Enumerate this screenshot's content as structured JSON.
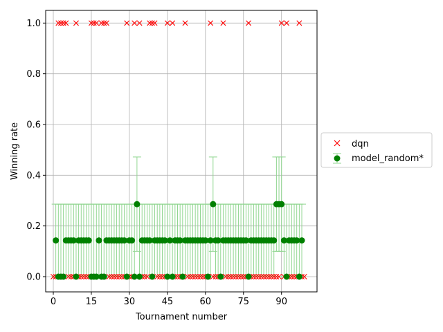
{
  "chart_data": {
    "type": "scatter",
    "title": "",
    "xlabel": "Tournament number",
    "ylabel": "Winning rate",
    "xlim": [
      -3,
      104
    ],
    "ylim": [
      -0.06,
      1.05
    ],
    "xticks": [
      0,
      15,
      30,
      45,
      60,
      75,
      90
    ],
    "yticks": [
      0.0,
      0.2,
      0.4,
      0.6,
      0.8,
      1.0
    ],
    "x_tick_labels": [
      "0",
      "15",
      "30",
      "45",
      "60",
      "75",
      "90"
    ],
    "y_tick_labels": [
      "0.0",
      "0.2",
      "0.4",
      "0.6",
      "0.8",
      "1.0"
    ],
    "grid": true,
    "legend_placement": "outside-right",
    "colors": {
      "dqn": "#ff0000",
      "model_random": "#008000",
      "errorbar": "#90d690"
    },
    "legend": [
      {
        "label": "dqn",
        "marker": "x"
      },
      {
        "label": "model_random*",
        "marker": "o-errorbar"
      }
    ],
    "series": [
      {
        "name": "dqn",
        "marker": "x",
        "x": [
          0,
          1,
          2,
          3,
          4,
          5,
          6,
          7,
          8,
          9,
          10,
          11,
          12,
          13,
          14,
          15,
          16,
          17,
          18,
          19,
          20,
          21,
          22,
          23,
          24,
          25,
          26,
          27,
          28,
          29,
          30,
          31,
          32,
          33,
          34,
          35,
          36,
          37,
          38,
          39,
          40,
          41,
          42,
          43,
          44,
          45,
          46,
          47,
          48,
          49,
          50,
          51,
          52,
          53,
          54,
          55,
          56,
          57,
          58,
          59,
          60,
          61,
          62,
          63,
          64,
          65,
          66,
          67,
          68,
          69,
          70,
          71,
          72,
          73,
          74,
          75,
          76,
          77,
          78,
          79,
          80,
          81,
          82,
          83,
          84,
          85,
          86,
          87,
          88,
          89,
          90,
          91,
          92,
          93,
          94,
          95,
          96,
          97,
          98,
          99
        ],
        "y": [
          0,
          0,
          1,
          1,
          1,
          1,
          0,
          0,
          0,
          1,
          0,
          0,
          0,
          0,
          0,
          1,
          1,
          1,
          0,
          1,
          1,
          1,
          0,
          0,
          0,
          0,
          0,
          0,
          0,
          1,
          0,
          0,
          1,
          0,
          1,
          0,
          0,
          0,
          1,
          1,
          1,
          0,
          0,
          0,
          0,
          1,
          0,
          1,
          0,
          0,
          0,
          0,
          1,
          0,
          0,
          0,
          0,
          0,
          0,
          0,
          0,
          0,
          1,
          0,
          0,
          0,
          0,
          1,
          0,
          0,
          0,
          0,
          0,
          0,
          0,
          0,
          0,
          1,
          0,
          0,
          0,
          0,
          0,
          0,
          0,
          0,
          0,
          0,
          0,
          0,
          1,
          0,
          1,
          0,
          0,
          0,
          0,
          1,
          0,
          0
        ]
      },
      {
        "name": "model_random*",
        "marker": "o",
        "x": [
          1,
          2,
          3,
          4,
          5,
          6,
          7,
          8,
          9,
          10,
          11,
          12,
          13,
          14,
          15,
          16,
          17,
          18,
          19,
          20,
          21,
          22,
          23,
          24,
          25,
          26,
          27,
          28,
          29,
          30,
          31,
          32,
          33,
          34,
          35,
          36,
          37,
          38,
          39,
          40,
          41,
          42,
          43,
          44,
          45,
          46,
          47,
          48,
          49,
          50,
          51,
          52,
          53,
          54,
          55,
          56,
          57,
          58,
          59,
          60,
          61,
          62,
          63,
          64,
          65,
          66,
          67,
          68,
          69,
          70,
          71,
          72,
          73,
          74,
          75,
          76,
          77,
          78,
          79,
          80,
          81,
          82,
          83,
          84,
          85,
          86,
          87,
          88,
          89,
          90,
          91,
          92,
          93,
          94,
          95,
          96,
          97,
          98
        ],
        "y": [
          0.143,
          0,
          0,
          0,
          0.143,
          0.143,
          0.143,
          0.143,
          0,
          0.143,
          0.143,
          0.143,
          0.143,
          0.143,
          0,
          0,
          0,
          0.143,
          0,
          0,
          0.143,
          0.143,
          0.143,
          0.143,
          0.143,
          0.143,
          0.143,
          0.143,
          0,
          0.143,
          0.143,
          0,
          0.286,
          0,
          0.143,
          0.143,
          0.143,
          0.143,
          0,
          0.143,
          0.143,
          0.143,
          0.143,
          0.143,
          0,
          0.143,
          0,
          0.143,
          0.143,
          0.143,
          0,
          0.143,
          0.143,
          0.143,
          0.143,
          0.143,
          0.143,
          0.143,
          0.143,
          0.143,
          0,
          0.143,
          0.286,
          0.143,
          0.143,
          0,
          0.143,
          0.143,
          0.143,
          0.143,
          0.143,
          0.143,
          0.143,
          0.143,
          0.143,
          0.143,
          0,
          0.143,
          0.143,
          0.143,
          0.143,
          0.143,
          0.143,
          0.143,
          0.143,
          0.143,
          0.143,
          0.286,
          0.286,
          0.286,
          0.143,
          0,
          0.143,
          0.143,
          0.143,
          0.143,
          0,
          0.143
        ],
        "yerr_low": [
          0.143,
          0,
          0,
          0,
          0.143,
          0.143,
          0.143,
          0.143,
          0,
          0.143,
          0.143,
          0.143,
          0.143,
          0.143,
          0,
          0,
          0,
          0.143,
          0,
          0,
          0.143,
          0.143,
          0.143,
          0.143,
          0.143,
          0.143,
          0.143,
          0.143,
          0,
          0.143,
          0.143,
          0,
          0.186,
          0,
          0.143,
          0.143,
          0.143,
          0.143,
          0,
          0.143,
          0.143,
          0.143,
          0.143,
          0.143,
          0,
          0.143,
          0,
          0.143,
          0.143,
          0.143,
          0,
          0.143,
          0.143,
          0.143,
          0.143,
          0.143,
          0.143,
          0.143,
          0.143,
          0.143,
          0,
          0.143,
          0.186,
          0.143,
          0.143,
          0,
          0.143,
          0.143,
          0.143,
          0.143,
          0.143,
          0.143,
          0.143,
          0.143,
          0.143,
          0.143,
          0,
          0.143,
          0.143,
          0.143,
          0.143,
          0.143,
          0.143,
          0.143,
          0.143,
          0.143,
          0.143,
          0.186,
          0.186,
          0.186,
          0.143,
          0,
          0.143,
          0.143,
          0.143,
          0.143,
          0,
          0.143
        ],
        "yerr_high": [
          0.143,
          0.286,
          0.286,
          0.286,
          0.143,
          0.143,
          0.143,
          0.143,
          0.286,
          0.143,
          0.143,
          0.143,
          0.143,
          0.143,
          0.286,
          0.286,
          0.286,
          0.143,
          0.286,
          0.286,
          0.143,
          0.143,
          0.143,
          0.143,
          0.143,
          0.143,
          0.143,
          0.143,
          0.286,
          0.143,
          0.143,
          0.286,
          0.186,
          0.286,
          0.143,
          0.143,
          0.143,
          0.143,
          0.286,
          0.143,
          0.143,
          0.143,
          0.143,
          0.143,
          0.286,
          0.143,
          0.286,
          0.143,
          0.143,
          0.143,
          0.286,
          0.143,
          0.143,
          0.143,
          0.143,
          0.143,
          0.143,
          0.143,
          0.143,
          0.143,
          0.286,
          0.143,
          0.186,
          0.143,
          0.143,
          0.286,
          0.143,
          0.143,
          0.143,
          0.143,
          0.143,
          0.143,
          0.143,
          0.143,
          0.143,
          0.143,
          0.286,
          0.143,
          0.143,
          0.143,
          0.143,
          0.143,
          0.143,
          0.143,
          0.143,
          0.143,
          0.143,
          0.186,
          0.186,
          0.186,
          0.143,
          0.286,
          0.143,
          0.143,
          0.143,
          0.143,
          0.286,
          0.143
        ]
      }
    ]
  }
}
